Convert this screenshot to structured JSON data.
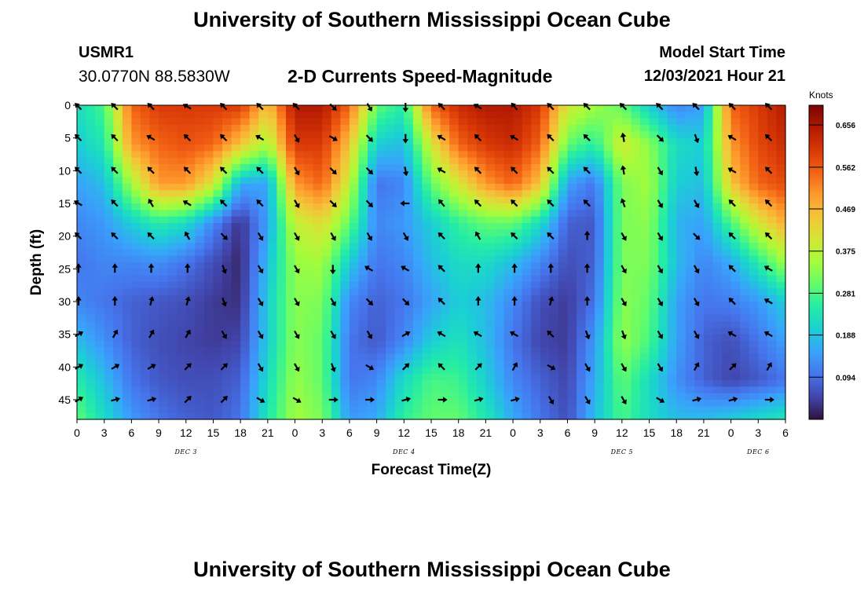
{
  "page": {
    "title": "University of Southern Mississippi Ocean Cube",
    "footer_title": "University of Southern Mississippi Ocean Cube",
    "station_id": "USMR1",
    "station_coords": "30.0770N  88.5830W",
    "subtitle": "2-D Currents Speed-Magnitude",
    "model_start_label": "Model Start Time",
    "model_start_value": "12/03/2021 Hour 21"
  },
  "chart_data": {
    "type": "heatmap",
    "title": "2-D Currents Speed-Magnitude",
    "xlabel": "Forecast Time(Z)",
    "ylabel": "Depth (ft)",
    "x_tick_labels": [
      "0",
      "3",
      "6",
      "9",
      "12",
      "15",
      "18",
      "21",
      "0",
      "3",
      "6",
      "9",
      "12",
      "15",
      "18",
      "21",
      "0",
      "3",
      "6",
      "9",
      "12",
      "15",
      "18",
      "21",
      "0",
      "3",
      "6"
    ],
    "x_range_hours": [
      0,
      78
    ],
    "day_labels": [
      {
        "label": "DEC 3",
        "hour": 12
      },
      {
        "label": "DEC 4",
        "hour": 36
      },
      {
        "label": "DEC 5",
        "hour": 60
      },
      {
        "label": "DEC 6",
        "hour": 75
      }
    ],
    "y_ticks_ft": [
      0,
      5,
      10,
      15,
      20,
      25,
      30,
      35,
      40,
      45
    ],
    "y_range_ft": [
      0,
      48
    ],
    "y_inverted": true,
    "colorbar": {
      "units": "Knots",
      "tick_labels": [
        "0.656",
        "0.562",
        "0.469",
        "0.375",
        "0.281",
        "0.188",
        "0.094"
      ],
      "range": [
        0.0,
        0.7
      ],
      "stops": [
        "#30123b",
        "#4145ab",
        "#4675ed",
        "#39a2fc",
        "#1bcfd4",
        "#24eca6",
        "#61fc6c",
        "#a4fc3b",
        "#d1e834",
        "#f3c63a",
        "#fe9b2d",
        "#f36315",
        "#d93806",
        "#b11901",
        "#7a0403"
      ]
    },
    "speed_grid_knots": {
      "depths_ft": [
        0,
        6,
        12,
        18,
        24,
        30,
        36,
        42,
        48
      ],
      "hours": [
        0,
        3,
        6,
        9,
        12,
        15,
        18,
        21,
        24,
        27,
        30,
        33,
        36,
        39,
        42,
        45,
        48,
        51,
        54,
        57,
        60,
        63,
        66,
        69,
        72,
        75,
        78
      ],
      "rows": [
        [
          0.22,
          0.28,
          0.55,
          0.6,
          0.6,
          0.6,
          0.6,
          0.45,
          0.65,
          0.65,
          0.55,
          0.3,
          0.25,
          0.55,
          0.62,
          0.65,
          0.65,
          0.6,
          0.4,
          0.35,
          0.3,
          0.2,
          0.12,
          0.15,
          0.55,
          0.6,
          0.65
        ],
        [
          0.2,
          0.24,
          0.5,
          0.55,
          0.57,
          0.55,
          0.45,
          0.35,
          0.6,
          0.6,
          0.45,
          0.2,
          0.18,
          0.4,
          0.55,
          0.6,
          0.62,
          0.55,
          0.3,
          0.25,
          0.4,
          0.33,
          0.22,
          0.2,
          0.5,
          0.58,
          0.62
        ],
        [
          0.15,
          0.18,
          0.35,
          0.5,
          0.5,
          0.4,
          0.16,
          0.15,
          0.5,
          0.55,
          0.38,
          0.1,
          0.12,
          0.3,
          0.4,
          0.5,
          0.55,
          0.45,
          0.15,
          0.1,
          0.32,
          0.35,
          0.2,
          0.18,
          0.45,
          0.55,
          0.58
        ],
        [
          0.12,
          0.14,
          0.2,
          0.25,
          0.22,
          0.12,
          0.03,
          0.15,
          0.38,
          0.42,
          0.3,
          0.12,
          0.14,
          0.2,
          0.26,
          0.3,
          0.3,
          0.22,
          0.08,
          0.07,
          0.32,
          0.33,
          0.17,
          0.15,
          0.28,
          0.4,
          0.48
        ],
        [
          0.1,
          0.12,
          0.12,
          0.13,
          0.1,
          0.06,
          0.02,
          0.18,
          0.34,
          0.35,
          0.2,
          0.1,
          0.12,
          0.18,
          0.22,
          0.22,
          0.18,
          0.12,
          0.06,
          0.08,
          0.32,
          0.32,
          0.18,
          0.12,
          0.16,
          0.25,
          0.35
        ],
        [
          0.12,
          0.1,
          0.08,
          0.07,
          0.06,
          0.04,
          0.03,
          0.2,
          0.33,
          0.32,
          0.12,
          0.08,
          0.1,
          0.15,
          0.2,
          0.18,
          0.12,
          0.06,
          0.04,
          0.1,
          0.33,
          0.3,
          0.15,
          0.1,
          0.11,
          0.14,
          0.2
        ],
        [
          0.18,
          0.13,
          0.08,
          0.06,
          0.05,
          0.04,
          0.05,
          0.2,
          0.33,
          0.3,
          0.1,
          0.07,
          0.12,
          0.2,
          0.23,
          0.18,
          0.1,
          0.05,
          0.04,
          0.14,
          0.34,
          0.28,
          0.15,
          0.08,
          0.06,
          0.1,
          0.15
        ],
        [
          0.25,
          0.18,
          0.1,
          0.07,
          0.06,
          0.06,
          0.08,
          0.22,
          0.34,
          0.3,
          0.1,
          0.12,
          0.22,
          0.28,
          0.27,
          0.2,
          0.12,
          0.08,
          0.05,
          0.16,
          0.3,
          0.22,
          0.13,
          0.08,
          0.05,
          0.07,
          0.1
        ],
        [
          0.3,
          0.22,
          0.14,
          0.1,
          0.08,
          0.07,
          0.1,
          0.24,
          0.35,
          0.32,
          0.14,
          0.16,
          0.26,
          0.3,
          0.3,
          0.24,
          0.16,
          0.1,
          0.06,
          0.18,
          0.28,
          0.22,
          0.18,
          0.18,
          0.2,
          0.22,
          0.24
        ]
      ]
    },
    "arrows": {
      "hours": [
        0,
        4,
        8,
        12,
        16,
        20,
        24,
        28,
        32,
        36,
        40,
        44,
        48,
        52,
        56,
        60,
        64,
        68,
        72,
        76
      ],
      "depths_ft": [
        0,
        5,
        10,
        15,
        20,
        25,
        30,
        35,
        40,
        45
      ],
      "direction_rows_deg": [
        [
          315,
          315,
          315,
          300,
          315,
          315,
          315,
          135,
          150,
          180,
          315,
          300,
          320,
          315,
          315,
          315,
          315,
          315,
          315,
          315
        ],
        [
          315,
          315,
          300,
          315,
          315,
          300,
          150,
          120,
          135,
          180,
          300,
          315,
          300,
          315,
          315,
          350,
          135,
          160,
          300,
          315
        ],
        [
          315,
          315,
          315,
          315,
          315,
          315,
          150,
          135,
          135,
          170,
          300,
          315,
          315,
          315,
          315,
          350,
          150,
          170,
          300,
          315
        ],
        [
          300,
          315,
          330,
          300,
          315,
          315,
          150,
          135,
          135,
          270,
          320,
          315,
          315,
          315,
          315,
          340,
          150,
          150,
          315,
          315
        ],
        [
          315,
          315,
          315,
          330,
          135,
          150,
          150,
          150,
          150,
          150,
          315,
          330,
          315,
          315,
          0,
          150,
          150,
          135,
          315,
          315
        ],
        [
          0,
          0,
          0,
          0,
          160,
          150,
          150,
          180,
          300,
          300,
          315,
          0,
          0,
          0,
          0,
          150,
          150,
          150,
          315,
          300
        ],
        [
          0,
          0,
          15,
          15,
          160,
          150,
          150,
          150,
          135,
          135,
          315,
          0,
          0,
          15,
          0,
          150,
          150,
          150,
          315,
          300
        ],
        [
          60,
          30,
          30,
          30,
          150,
          150,
          150,
          150,
          150,
          60,
          300,
          300,
          300,
          315,
          160,
          160,
          150,
          150,
          300,
          300
        ],
        [
          60,
          60,
          60,
          45,
          45,
          150,
          150,
          160,
          120,
          45,
          315,
          45,
          30,
          120,
          150,
          150,
          150,
          30,
          45,
          30
        ],
        [
          60,
          75,
          75,
          45,
          45,
          120,
          120,
          90,
          90,
          75,
          90,
          75,
          75,
          150,
          150,
          150,
          120,
          75,
          75,
          90
        ]
      ]
    }
  }
}
